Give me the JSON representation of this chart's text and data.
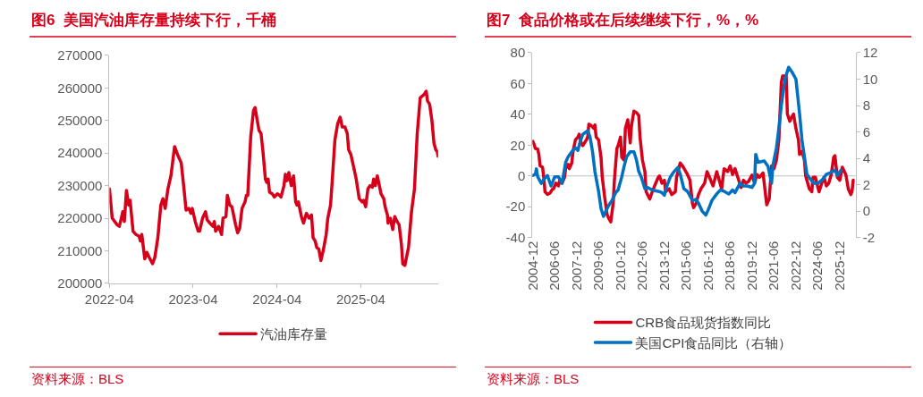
{
  "chart_data": [
    {
      "type": "line",
      "title": "图6  美国汽油库存量持续下行，千桶",
      "annotations": [
        "资料来源：BLS"
      ],
      "legend": "bottom",
      "grid": false,
      "marker": "none",
      "line_style": "solid",
      "xlim": [
        "2022-04-01",
        "2026-03-04"
      ],
      "xticks": [
        "2022-04",
        "2023-04",
        "2024-04",
        "2025-04"
      ],
      "ylim": [
        200000,
        270000
      ],
      "yticks": [
        200000,
        210000,
        220000,
        230000,
        240000,
        250000,
        260000,
        270000
      ],
      "series": [
        {
          "name": "汽油库存量",
          "color": "#d7001b",
          "x": [
            "2022-04-01",
            "2022-04-13",
            "2022-05-04",
            "2022-05-14",
            "2022-05-23",
            "2022-05-29",
            "2022-06-05",
            "2022-06-14",
            "2022-06-24",
            "2022-06-30",
            "2022-07-13",
            "2022-07-25",
            "2022-08-08",
            "2022-08-14",
            "2022-08-20",
            "2022-09-02",
            "2022-09-11",
            "2022-09-21",
            "2022-10-06",
            "2022-10-16",
            "2022-10-29",
            "2022-11-11",
            "2022-11-20",
            "2022-11-30",
            "2022-12-12",
            "2022-12-25",
            "2023-01-10",
            "2023-01-26",
            "2023-02-08",
            "2023-02-20",
            "2023-03-01",
            "2023-03-13",
            "2023-03-22",
            "2023-03-28",
            "2023-04-10",
            "2023-04-23",
            "2023-04-29",
            "2023-05-12",
            "2023-05-25",
            "2023-06-01",
            "2023-06-13",
            "2023-06-26",
            "2023-07-02",
            "2023-07-08",
            "2023-07-21",
            "2023-08-03",
            "2023-08-09",
            "2023-08-22",
            "2023-08-28",
            "2023-09-08",
            "2023-09-17",
            "2023-10-03",
            "2023-10-12",
            "2023-10-21",
            "2023-10-31",
            "2023-11-13",
            "2023-11-19",
            "2023-11-25",
            "2023-12-08",
            "2023-12-20",
            "2023-12-27",
            "2024-01-03",
            "2024-01-13",
            "2024-01-22",
            "2024-01-31",
            "2024-02-10",
            "2024-02-16",
            "2024-02-22",
            "2024-02-28",
            "2024-03-11",
            "2024-03-20",
            "2024-04-02",
            "2024-04-12",
            "2024-04-18",
            "2024-05-01",
            "2024-05-07",
            "2024-05-14",
            "2024-05-22",
            "2024-06-02",
            "2024-06-12",
            "2024-06-21",
            "2024-06-27",
            "2024-07-03",
            "2024-07-16",
            "2024-07-25",
            "2024-08-07",
            "2024-08-19",
            "2024-08-29",
            "2024-09-05",
            "2024-09-14",
            "2024-09-21",
            "2024-09-30",
            "2024-10-09",
            "2024-10-19",
            "2024-11-01",
            "2024-11-08",
            "2024-11-20",
            "2024-11-26",
            "2024-12-09",
            "2024-12-21",
            "2025-01-01",
            "2025-01-10",
            "2025-01-22",
            "2025-02-01",
            "2025-02-07",
            "2025-02-17",
            "2025-02-28",
            "2025-03-12",
            "2025-03-25",
            "2025-04-07",
            "2025-04-13",
            "2025-04-22",
            "2025-05-02",
            "2025-05-11",
            "2025-05-21",
            "2025-05-27",
            "2025-06-03",
            "2025-06-12",
            "2025-06-18",
            "2025-06-28",
            "2025-07-10",
            "2025-07-16",
            "2025-07-26",
            "2025-07-29",
            "2025-08-08",
            "2025-08-18",
            "2025-08-27",
            "2025-09-06",
            "2025-09-15",
            "2025-09-25",
            "2025-10-01",
            "2025-10-10",
            "2025-10-26",
            "2025-11-08",
            "2025-11-21",
            "2025-12-03",
            "2025-12-16",
            "2025-12-25",
            "2026-01-02",
            "2026-01-11",
            "2026-01-17",
            "2026-01-26",
            "2026-02-05",
            "2026-02-14",
            "2026-02-22",
            "2026-02-28",
            "2026-03-04"
          ],
          "values": [
            229000,
            220000,
            218000,
            217500,
            220000,
            222000,
            219000,
            228500,
            224000,
            225500,
            216000,
            215000,
            214500,
            213000,
            215000,
            207500,
            209500,
            208000,
            206000,
            208000,
            214000,
            224000,
            226000,
            223000,
            229000,
            233000,
            242000,
            239000,
            237000,
            229000,
            222500,
            223000,
            221500,
            223000,
            219000,
            216000,
            216000,
            220000,
            222000,
            219500,
            218500,
            217500,
            219000,
            216000,
            217500,
            215000,
            220000,
            220500,
            227000,
            224000,
            223500,
            218000,
            215500,
            217000,
            223000,
            225000,
            227000,
            227000,
            245000,
            253000,
            254000,
            251000,
            247000,
            246000,
            240000,
            232000,
            231000,
            232000,
            228000,
            227500,
            226500,
            227500,
            227000,
            226500,
            230000,
            233500,
            231500,
            234000,
            230000,
            233000,
            225000,
            224000,
            225000,
            220500,
            218500,
            221500,
            220000,
            221000,
            214000,
            213000,
            211000,
            210500,
            207000,
            210000,
            215000,
            220000,
            224000,
            230000,
            244000,
            249000,
            251000,
            248000,
            248000,
            246000,
            241000,
            239500,
            236000,
            232000,
            226000,
            225000,
            225500,
            223500,
            229000,
            230000,
            229500,
            232000,
            230000,
            233000,
            231000,
            227500,
            226000,
            223500,
            221000,
            218500,
            220000,
            216500,
            220500,
            219000,
            218000,
            212000,
            206000,
            205500,
            211000,
            222000,
            229000,
            246000,
            257000,
            257500,
            258000,
            259000,
            256000,
            255000,
            250000,
            243000,
            241000,
            240500,
            239000
          ]
        }
      ]
    },
    {
      "type": "line",
      "title": "图7  食品价格或在后续继续下行，%，%",
      "annotations": [
        "资料来源：BLS"
      ],
      "legend": "bottom",
      "grid": false,
      "marker": "none",
      "line_style": "solid",
      "xlim": [
        "2004-11-20",
        "2027-01"
      ],
      "xticks": [
        "2004-12",
        "2006-06",
        "2007-12",
        "2009-06",
        "2010-12",
        "2012-06",
        "2013-12",
        "2015-06",
        "2016-12",
        "2018-06",
        "2019-12",
        "2021-06",
        "2022-12",
        "2024-06",
        "2025-12"
      ],
      "ref_lines": [
        {
          "axis": "y",
          "value": 0,
          "color": "#bfbfbf"
        }
      ],
      "ylim": [
        -40,
        80
      ],
      "yticks": [
        -40,
        -20,
        0,
        20,
        40,
        60,
        80
      ],
      "y2lim": [
        -2,
        12
      ],
      "y2ticks": [
        -2,
        0,
        2,
        4,
        6,
        8,
        10,
        12
      ],
      "series": [
        {
          "name": "CRB食品现货指数同比",
          "color": "#d7001b",
          "x": [
            "2004-12",
            "2005-01",
            "2005-02",
            "2005-04",
            "2005-05",
            "2005-06",
            "2005-08",
            "2005-09",
            "2005-10",
            "2005-12",
            "2006-02",
            "2006-04",
            "2006-05",
            "2006-07",
            "2006-09",
            "2006-10",
            "2006-12",
            "2007-02",
            "2007-03",
            "2007-05",
            "2007-06",
            "2007-08",
            "2007-09",
            "2007-11",
            "2008-01",
            "2008-02",
            "2008-04",
            "2008-05",
            "2008-08",
            "2008-09",
            "2008-10",
            "2008-12",
            "2009-02",
            "2009-03",
            "2009-04",
            "2009-06",
            "2009-08",
            "2009-09",
            "2009-11",
            "2010-01",
            "2010-02",
            "2010-04",
            "2010-06",
            "2010-07",
            "2010-09",
            "2010-10",
            "2010-12",
            "2011-01",
            "2011-03",
            "2011-04",
            "2011-06",
            "2011-08",
            "2011-09",
            "2011-11",
            "2012-01",
            "2012-03",
            "2012-04",
            "2012-06",
            "2012-08",
            "2012-09",
            "2012-12",
            "2013-02",
            "2013-04",
            "2013-07",
            "2013-08",
            "2013-10",
            "2013-12",
            "2014-01",
            "2014-04",
            "2014-06",
            "2014-09",
            "2014-10",
            "2015-01",
            "2015-03",
            "2015-05",
            "2015-07",
            "2015-09",
            "2015-11",
            "2015-12",
            "2016-02",
            "2016-04",
            "2016-06",
            "2016-09",
            "2016-11",
            "2017-01",
            "2017-03",
            "2017-04",
            "2017-07",
            "2017-09",
            "2017-11",
            "2018-01",
            "2018-04",
            "2018-06",
            "2018-08",
            "2018-10",
            "2019-01",
            "2019-03",
            "2019-05",
            "2019-07",
            "2019-09",
            "2019-12",
            "2020-02",
            "2020-04",
            "2020-06",
            "2020-09",
            "2020-11",
            "2020-12",
            "2021-02",
            "2021-04",
            "2021-06",
            "2021-08",
            "2021-10",
            "2021-12",
            "2022-01",
            "2022-04",
            "2022-05",
            "2022-07",
            "2022-08",
            "2022-10",
            "2022-12",
            "2023-02",
            "2023-03",
            "2023-05",
            "2023-07",
            "2023-08",
            "2023-11",
            "2024-01",
            "2024-02",
            "2024-04",
            "2024-06",
            "2024-07",
            "2024-10",
            "2024-11",
            "2025-01",
            "2025-03",
            "2025-05",
            "2025-07",
            "2025-08",
            "2025-10",
            "2025-12",
            "2026-02",
            "2026-05",
            "2026-07",
            "2026-09",
            "2026-10",
            "2026-11"
          ],
          "values": [
            22.4,
            20.6,
            17.8,
            17.4,
            14,
            6.5,
            5.6,
            -1,
            -10.3,
            -12,
            -11.2,
            -8.8,
            -8.4,
            -4.7,
            -6.5,
            -3.2,
            -4.7,
            -0.9,
            4.7,
            7.5,
            4.7,
            8.4,
            15.9,
            23.4,
            25.2,
            27.1,
            20.6,
            19.6,
            23.4,
            25.2,
            33.6,
            32.7,
            30.8,
            33.1,
            25.2,
            23.4,
            12.1,
            -0.9,
            -14,
            -25.2,
            -27.1,
            -29.9,
            -17.8,
            -2.8,
            17.8,
            19.6,
            25.2,
            12.1,
            10.3,
            30.8,
            36.4,
            21.5,
            32.7,
            42.1,
            41.1,
            39.3,
            25.2,
            10.3,
            2.8,
            -10.3,
            -15,
            -10.3,
            -6.5,
            -0.9,
            0,
            -4.7,
            -2.8,
            -10.3,
            -8.4,
            -12.1,
            -10.3,
            -0.9,
            8.4,
            6.5,
            3.7,
            0.9,
            -2.8,
            -17.8,
            -20.6,
            -17.8,
            -12.1,
            -8.4,
            -4.7,
            2.8,
            -0.9,
            -4.7,
            -6.5,
            2.8,
            -2.8,
            -8.4,
            4.7,
            2.8,
            6.5,
            0.9,
            4.7,
            -2.8,
            -7.5,
            -2.8,
            -4.7,
            -3.7,
            0.6,
            -4.7,
            0.9,
            -0.9,
            1.9,
            -12.1,
            -18.7,
            -15,
            6.5,
            4.7,
            10.3,
            23.4,
            60.7,
            64.9,
            64.9,
            40.2,
            35.5,
            37.4,
            40.2,
            30.8,
            23.4,
            14,
            15.9,
            10.3,
            0,
            -8.4,
            -10.3,
            -0.9,
            -0.9,
            -7.5,
            -10.3,
            -2.8,
            -0.9,
            -6.5,
            -4.7,
            0.9,
            12.1,
            13.1,
            -0.9,
            -2.8,
            5.6,
            0.9,
            -8.4,
            -12.1,
            -10.3,
            -2.8
          ]
        },
        {
          "name": "美国CPI食品同比（右轴）",
          "color": "#0070c0",
          "axis": "y2",
          "x": [
            "2004-12",
            "2005-02",
            "2005-03",
            "2005-04",
            "2005-07",
            "2005-09",
            "2005-12",
            "2006-03",
            "2006-06",
            "2006-09",
            "2006-12",
            "2007-03",
            "2007-05",
            "2007-08",
            "2007-11",
            "2008-01",
            "2008-03",
            "2008-05",
            "2008-09",
            "2008-11",
            "2009-01",
            "2009-03",
            "2009-06",
            "2009-08",
            "2009-10",
            "2009-12",
            "2010-02",
            "2010-05",
            "2010-08",
            "2010-10",
            "2011-01",
            "2011-03",
            "2011-05",
            "2011-08",
            "2011-11",
            "2012-01",
            "2012-03",
            "2012-05",
            "2012-08",
            "2012-10",
            "2013-02",
            "2013-07",
            "2013-10",
            "2013-12",
            "2014-02",
            "2014-05",
            "2014-08",
            "2014-11",
            "2015-01",
            "2015-04",
            "2015-07",
            "2015-11",
            "2016-02",
            "2016-04",
            "2016-07",
            "2016-10",
            "2016-12",
            "2017-03",
            "2017-07",
            "2017-10",
            "2018-01",
            "2018-05",
            "2018-08",
            "2018-10",
            "2019-02",
            "2019-05",
            "2019-08",
            "2019-12",
            "2020-02",
            "2020-03",
            "2020-05",
            "2020-10",
            "2021-01",
            "2021-04",
            "2021-05",
            "2021-08",
            "2021-10",
            "2021-12",
            "2022-03",
            "2022-06",
            "2022-09",
            "2022-12",
            "2023-03",
            "2023-05",
            "2023-07",
            "2023-09",
            "2023-12",
            "2024-03",
            "2024-06",
            "2024-10",
            "2025-01",
            "2025-04",
            "2025-08",
            "2025-10",
            "2026-01"
          ],
          "values": [
            2.7,
            2.8,
            3.2,
            2.6,
            2.1,
            2.4,
            2.7,
            1.9,
            2.6,
            2.6,
            2.1,
            3.7,
            4.1,
            4.5,
            4.8,
            4.6,
            5.3,
            5.8,
            6.1,
            5.6,
            4.5,
            3.0,
            1.5,
            0.2,
            -0.4,
            0.0,
            0.4,
            0.8,
            1.4,
            1.6,
            2.6,
            3.4,
            4.1,
            4.5,
            4.5,
            3.9,
            3.0,
            2.6,
            1.7,
            1.8,
            1.6,
            1.5,
            1.4,
            1.2,
            1.9,
            2.6,
            3.0,
            3.3,
            2.8,
            1.7,
            1.5,
            0.8,
            0.9,
            0.6,
            0.0,
            -0.3,
            0.1,
            0.8,
            1.3,
            1.6,
            1.5,
            1.3,
            1.6,
            1.4,
            2.1,
            1.9,
            1.9,
            1.8,
            2.1,
            4.3,
            3.7,
            3.8,
            3.4,
            2.1,
            3.4,
            4.8,
            6.3,
            8.0,
            10.0,
            10.9,
            10.5,
            10.0,
            7.4,
            5.4,
            4.1,
            2.8,
            2.4,
            2.1,
            2.1,
            2.4,
            2.8,
            2.9,
            3.1,
            2.7,
            3.1
          ]
        }
      ]
    }
  ]
}
